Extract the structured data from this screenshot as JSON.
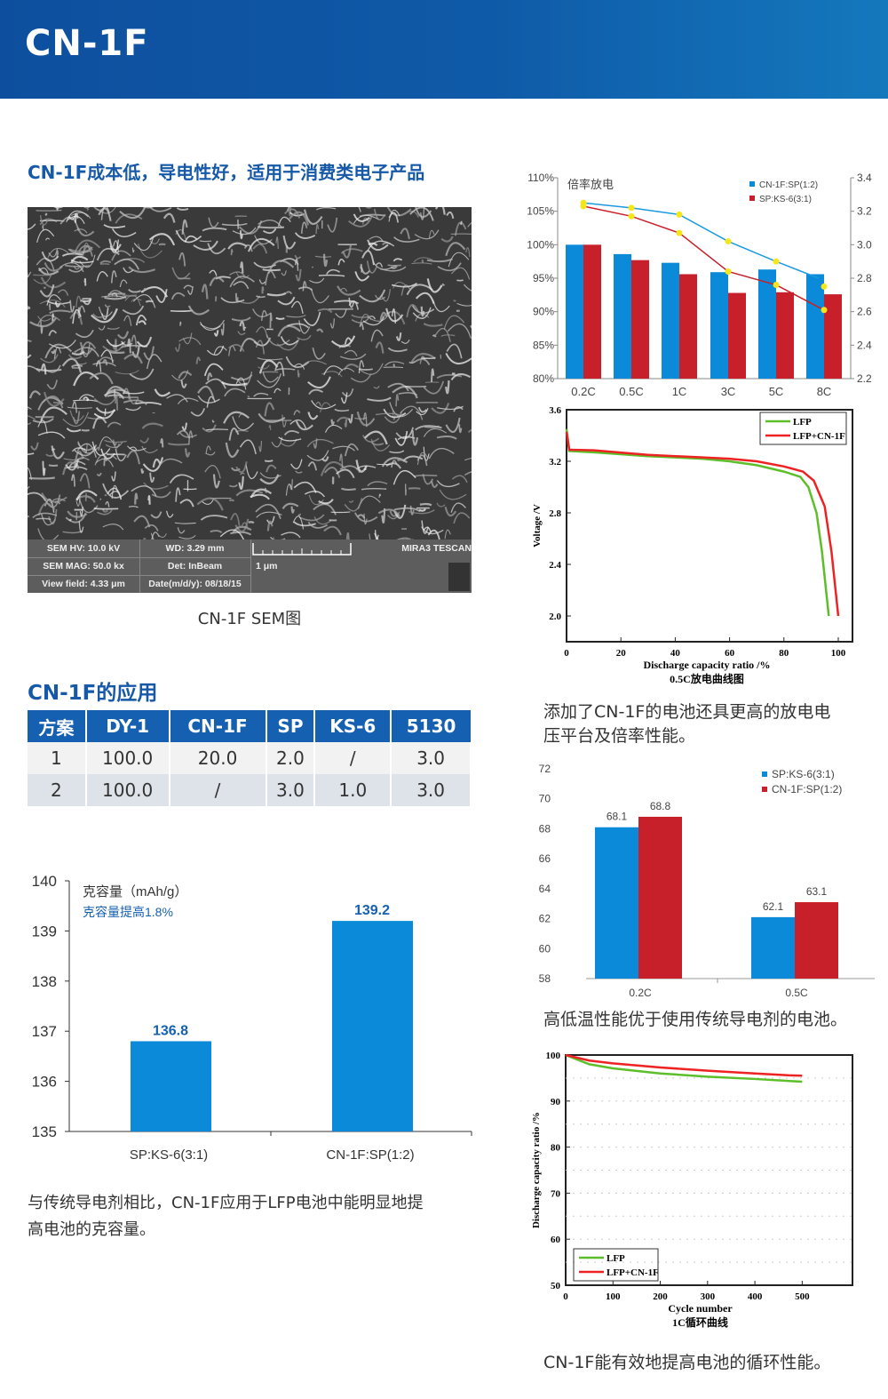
{
  "header": {
    "title": "CN-1F"
  },
  "left": {
    "heading": "CN-1F成本低，导电性好，适用于消费类电子产品",
    "sem": {
      "hv": "SEM HV: 10.0 kV",
      "wd": "WD: 3.29 mm",
      "brand": "MIRA3 TESCAN",
      "mag": "SEM MAG: 50.0 kx",
      "det": "Det: InBeam",
      "scale": "1 μm",
      "field": "View field: 4.33 μm",
      "date": "Date(m/d/y): 08/18/15",
      "caption": "CN-1F SEM图"
    },
    "app_heading": "CN-1F的应用",
    "table": {
      "headers": [
        "方案",
        "DY-1",
        "CN-1F",
        "SP",
        "KS-6",
        "5130"
      ],
      "rows": [
        [
          "1",
          "100.0",
          "20.0",
          "2.0",
          "/",
          "3.0"
        ],
        [
          "2",
          "100.0",
          "/",
          "3.0",
          "1.0",
          "3.0"
        ]
      ]
    },
    "paragraph_line1": "与传统导电剂相比，CN-1F应用于LFP电池中能明显地提",
    "paragraph_line2": "高电池的克容量。"
  },
  "right": {
    "text1_line1": "添加了CN-1F的电池还具更高的放电电",
    "text1_line2": "压平台及倍率性能。",
    "text2": "高低温性能优于使用传统导电剂的电池。",
    "text3": "CN-1F能有效地提高电池的循环性能。"
  },
  "colors": {
    "blue": "#0a8ad8",
    "red": "#c8202b",
    "yellow": "#f5e61a",
    "green": "#5cbf2a",
    "line_red": "#ee2222",
    "brand": "#1560b0"
  },
  "chart_data": [
    {
      "type": "bar",
      "id": "capacity",
      "title": "克容量（mAh/g）",
      "annotation": "克容量提高1.8%",
      "categories": [
        "SP:KS-6(3:1)",
        "CN-1F:SP(1:2)"
      ],
      "values": [
        136.8,
        139.2
      ],
      "data_labels": [
        "136.8",
        "139.2"
      ],
      "ylim": [
        135,
        140
      ],
      "yticks": [
        "135",
        "136",
        "137",
        "138",
        "139",
        "140"
      ]
    },
    {
      "type": "bar+line",
      "id": "rate",
      "title": "倍率放电",
      "categories": [
        "0.2C",
        "0.5C",
        "1C",
        "3C",
        "5C",
        "8C"
      ],
      "ylim": [
        80,
        110
      ],
      "yticks": [
        "80%",
        "85%",
        "90%",
        "95%",
        "100%",
        "105%",
        "110%"
      ],
      "y2lim": [
        2.2,
        3.4
      ],
      "y2ticks": [
        "2.2",
        "2.4",
        "2.6",
        "2.8",
        "3.0",
        "3.2",
        "3.4"
      ],
      "series": [
        {
          "name": "CN-1F:SP(1:2)",
          "values": [
            100,
            98.6,
            97.3,
            95.9,
            96.3,
            95.6
          ],
          "line": [
            3.25,
            3.22,
            3.18,
            3.02,
            2.9,
            2.75
          ]
        },
        {
          "name": "SP:KS-6(3:1)",
          "values": [
            100,
            97.7,
            95.6,
            92.8,
            92.9,
            92.6
          ],
          "line": [
            3.23,
            3.17,
            3.07,
            2.84,
            2.76,
            2.61
          ]
        }
      ]
    },
    {
      "type": "line",
      "id": "discharge",
      "xlabel": "Discharge capacity ratio /%",
      "ylabel": "Voltage /V",
      "caption": "0.5C放电曲线图",
      "xlim": [
        0,
        100
      ],
      "ylim": [
        1.8,
        3.6
      ],
      "xticks": [
        "0",
        "20",
        "40",
        "60",
        "80",
        "100"
      ],
      "yticks": [
        "2.0",
        "2.4",
        "2.8",
        "3.2",
        "3.6"
      ],
      "series": [
        {
          "name": "LFP",
          "points": [
            [
              0,
              3.45
            ],
            [
              1,
              3.28
            ],
            [
              10,
              3.27
            ],
            [
              30,
              3.24
            ],
            [
              50,
              3.22
            ],
            [
              60,
              3.2
            ],
            [
              70,
              3.17
            ],
            [
              80,
              3.12
            ],
            [
              86,
              3.08
            ],
            [
              89,
              3.0
            ],
            [
              92,
              2.8
            ],
            [
              94,
              2.5
            ],
            [
              95.5,
              2.2
            ],
            [
              96.5,
              2.0
            ]
          ]
        },
        {
          "name": "LFP+CN-1F",
          "points": [
            [
              0,
              3.43
            ],
            [
              1,
              3.29
            ],
            [
              10,
              3.285
            ],
            [
              30,
              3.25
            ],
            [
              50,
              3.23
            ],
            [
              60,
              3.22
            ],
            [
              70,
              3.2
            ],
            [
              80,
              3.16
            ],
            [
              87,
              3.12
            ],
            [
              91,
              3.05
            ],
            [
              95,
              2.85
            ],
            [
              97.5,
              2.5
            ],
            [
              99,
              2.2
            ],
            [
              100,
              2.0
            ]
          ]
        }
      ]
    },
    {
      "type": "bar",
      "id": "temperature",
      "categories": [
        "0.2C",
        "0.5C"
      ],
      "ylim": [
        58,
        72
      ],
      "yticks": [
        "58",
        "60",
        "62",
        "64",
        "66",
        "68",
        "70",
        "72"
      ],
      "series": [
        {
          "name": "SP:KS-6(3:1)",
          "values": [
            68.1,
            62.1
          ],
          "data_labels": [
            "68.1",
            "62.1"
          ]
        },
        {
          "name": "CN-1F:SP(1:2)",
          "values": [
            68.8,
            63.1
          ],
          "data_labels": [
            "68.8",
            "63.1"
          ]
        }
      ]
    },
    {
      "type": "line",
      "id": "cycle",
      "xlabel": "Cycle number",
      "ylabel": "Discharge capacity ratio /%",
      "caption": "1C循环曲线",
      "xlim": [
        0,
        550
      ],
      "ylim": [
        50,
        100
      ],
      "xticks": [
        "0",
        "100",
        "200",
        "300",
        "400",
        "500"
      ],
      "yticks": [
        "50",
        "60",
        "70",
        "80",
        "90",
        "100"
      ],
      "series": [
        {
          "name": "LFP",
          "points": [
            [
              0,
              100
            ],
            [
              50,
              98
            ],
            [
              100,
              97.1
            ],
            [
              200,
              96
            ],
            [
              300,
              95.3
            ],
            [
              400,
              94.8
            ],
            [
              500,
              94.2
            ]
          ]
        },
        {
          "name": "LFP+CN-1F",
          "points": [
            [
              0,
              100
            ],
            [
              50,
              98.8
            ],
            [
              100,
              98.2
            ],
            [
              200,
              97.3
            ],
            [
              300,
              96.6
            ],
            [
              400,
              96
            ],
            [
              470,
              95.6
            ],
            [
              500,
              95.5
            ]
          ]
        }
      ]
    }
  ]
}
